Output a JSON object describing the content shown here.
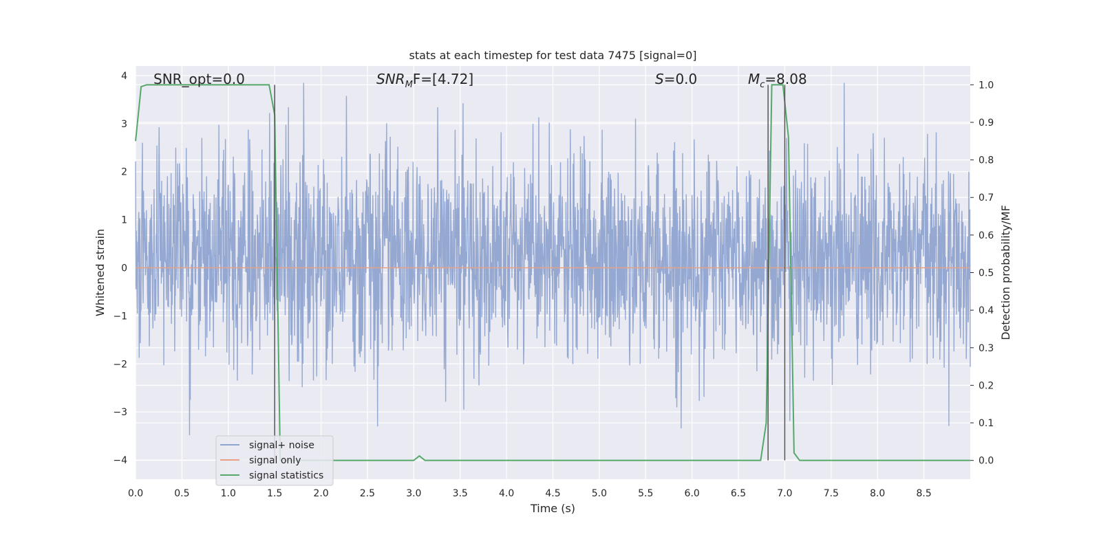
{
  "chart_data": {
    "type": "line",
    "title": "stats at each timestep for test data 7475 [signal=0]",
    "xlabel": "Time (s)",
    "ylabel": "Whitened strain",
    "y2label": "Detection probability/MF",
    "xlim": [
      0,
      9.0
    ],
    "ylim": [
      -4.4,
      4.2
    ],
    "y2lim": [
      -0.05,
      1.05
    ],
    "xticks": [
      0.0,
      0.5,
      1.0,
      1.5,
      2.0,
      2.5,
      3.0,
      3.5,
      4.0,
      4.5,
      5.0,
      5.5,
      6.0,
      6.5,
      7.0,
      7.5,
      8.0,
      8.5
    ],
    "xtick_labels": [
      "0.0",
      "0.5",
      "1.0",
      "1.5",
      "2.0",
      "2.5",
      "3.0",
      "3.5",
      "4.0",
      "4.5",
      "5.0",
      "5.5",
      "6.0",
      "6.5",
      "7.0",
      "7.5",
      "8.0",
      "8.5"
    ],
    "yticks": [
      -4,
      -3,
      -2,
      -1,
      0,
      1,
      2,
      3,
      4
    ],
    "ytick_labels": [
      "−4",
      "−3",
      "−2",
      "−1",
      "0",
      "1",
      "2",
      "3",
      "4"
    ],
    "y2ticks": [
      0.0,
      0.1,
      0.2,
      0.3,
      0.4,
      0.5,
      0.6,
      0.7,
      0.8,
      0.9,
      1.0
    ],
    "y2tick_labels": [
      "0.0",
      "0.1",
      "0.2",
      "0.3",
      "0.4",
      "0.5",
      "0.6",
      "0.7",
      "0.8",
      "0.9",
      "1.0"
    ],
    "grid": true,
    "legend_position": "lower-left",
    "annotations": {
      "snr_opt": "SNR_opt=0.0",
      "snr_mf_prefix": "SNR",
      "snr_mf_sub": "M",
      "snr_mf_rest": "F=[4.72]",
      "s_italic": "S",
      "s_rest": "=0.0",
      "mc_italic": "M",
      "mc_sub": "c",
      "mc_rest": "=8.08"
    },
    "vlines_x": [
      1.5,
      6.82,
      7.0
    ],
    "series": [
      {
        "name": "signal+ noise",
        "axis": "left",
        "color": "#8fa4cf",
        "kind": "noise",
        "sample_rate": 256,
        "typical_envelope": [
          -1.7,
          2.2
        ],
        "extremes": [
          -3.9,
          3.85
        ]
      },
      {
        "name": "signal only",
        "axis": "left",
        "color": "#e8a185",
        "x": [
          0.0,
          9.0
        ],
        "y": [
          0.0,
          0.0
        ]
      },
      {
        "name": "signal statistics",
        "axis": "right",
        "color": "#55a868",
        "x": [
          0.0,
          0.06,
          0.12,
          1.44,
          1.5,
          1.56,
          1.62,
          3.0,
          3.06,
          3.12,
          6.74,
          6.8,
          6.86,
          6.92,
          6.98,
          7.04,
          7.1,
          7.16,
          9.0
        ],
        "y": [
          0.85,
          0.995,
          1.0,
          1.0,
          0.92,
          0.0,
          0.0,
          0.0,
          0.012,
          0.0,
          0.0,
          0.1,
          1.0,
          1.0,
          1.0,
          0.86,
          0.02,
          0.0,
          0.0
        ]
      }
    ]
  }
}
